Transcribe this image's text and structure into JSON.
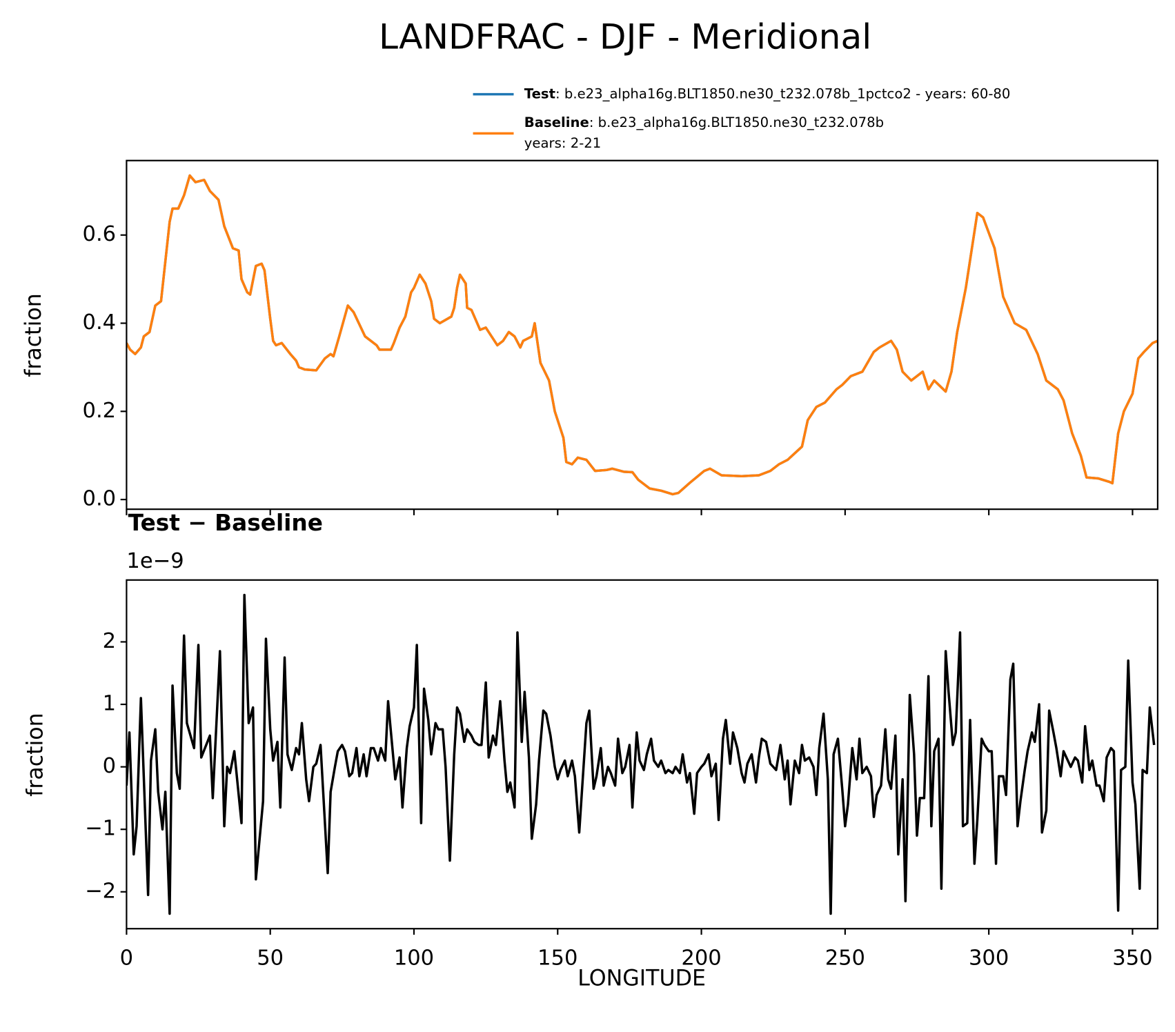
{
  "chart_data": [
    {
      "type": "line",
      "title": "LANDFRAC - DJF - Meridional",
      "ylabel": "fraction",
      "x": [
        0,
        1.25,
        3,
        5,
        6,
        8,
        10,
        12,
        14,
        15,
        16,
        18,
        20,
        22,
        24,
        27,
        29,
        32,
        34,
        37,
        39,
        40,
        42,
        43,
        45,
        47,
        48,
        50,
        51,
        52,
        54,
        57,
        59,
        60,
        62,
        66,
        69,
        71,
        72,
        74,
        77,
        79,
        83,
        87,
        88,
        92,
        93,
        95,
        97,
        99,
        100,
        102,
        104,
        106,
        107,
        109,
        113,
        114,
        115,
        116,
        118,
        118.5,
        120,
        123,
        125,
        127,
        129,
        131,
        133,
        135,
        137,
        138,
        141,
        142,
        144,
        147,
        149,
        152,
        153,
        155,
        157,
        160,
        163,
        167,
        169,
        173,
        176,
        178,
        182,
        186,
        190,
        192,
        196,
        201,
        203,
        207,
        214,
        220,
        224,
        227,
        230,
        235,
        237,
        240,
        243,
        247,
        249,
        252,
        256,
        260,
        262,
        266,
        268,
        270,
        273,
        277,
        279,
        281,
        285,
        287,
        289,
        292,
        296,
        298,
        302,
        305,
        309,
        313,
        317,
        320,
        324,
        326,
        329,
        332,
        334,
        338,
        342,
        343,
        345,
        347,
        350,
        352,
        354,
        357,
        358.75
      ],
      "series": [
        {
          "name": "Test",
          "description": [
            ": b.e23_alpha16g.BLT1850.ne30_t232.078b_1pctco2 - years: 60-80"
          ],
          "color": "#1f77b4",
          "values": [
            0.355,
            0.34,
            0.33,
            0.345,
            0.37,
            0.38,
            0.44,
            0.45,
            0.57,
            0.63,
            0.66,
            0.66,
            0.69,
            0.735,
            0.72,
            0.725,
            0.7,
            0.68,
            0.62,
            0.57,
            0.565,
            0.5,
            0.47,
            0.465,
            0.53,
            0.535,
            0.52,
            0.41,
            0.36,
            0.35,
            0.355,
            0.33,
            0.315,
            0.3,
            0.295,
            0.293,
            0.32,
            0.33,
            0.325,
            0.37,
            0.44,
            0.425,
            0.37,
            0.35,
            0.34,
            0.34,
            0.355,
            0.39,
            0.415,
            0.47,
            0.48,
            0.51,
            0.49,
            0.45,
            0.41,
            0.4,
            0.415,
            0.435,
            0.48,
            0.51,
            0.49,
            0.435,
            0.43,
            0.385,
            0.39,
            0.37,
            0.35,
            0.36,
            0.38,
            0.37,
            0.345,
            0.36,
            0.37,
            0.4,
            0.31,
            0.27,
            0.2,
            0.14,
            0.085,
            0.08,
            0.095,
            0.09,
            0.065,
            0.067,
            0.07,
            0.063,
            0.062,
            0.045,
            0.025,
            0.02,
            0.012,
            0.015,
            0.038,
            0.065,
            0.07,
            0.055,
            0.053,
            0.055,
            0.065,
            0.08,
            0.09,
            0.12,
            0.18,
            0.21,
            0.22,
            0.25,
            0.26,
            0.28,
            0.29,
            0.335,
            0.345,
            0.36,
            0.34,
            0.29,
            0.27,
            0.29,
            0.25,
            0.27,
            0.245,
            0.29,
            0.38,
            0.48,
            0.65,
            0.64,
            0.57,
            0.46,
            0.4,
            0.385,
            0.33,
            0.27,
            0.25,
            0.225,
            0.15,
            0.1,
            0.05,
            0.048,
            0.04,
            0.037,
            0.15,
            0.2,
            0.24,
            0.32,
            0.335,
            0.355,
            0.36
          ]
        },
        {
          "name": "Baseline",
          "description": [
            ": b.e23_alpha16g.BLT1850.ne30_t232.078b",
            "years: 2-21"
          ],
          "color": "#ff7f0e",
          "values": [
            0.355,
            0.34,
            0.33,
            0.345,
            0.37,
            0.38,
            0.44,
            0.45,
            0.57,
            0.63,
            0.66,
            0.66,
            0.69,
            0.735,
            0.72,
            0.725,
            0.7,
            0.68,
            0.62,
            0.57,
            0.565,
            0.5,
            0.47,
            0.465,
            0.53,
            0.535,
            0.52,
            0.41,
            0.36,
            0.35,
            0.355,
            0.33,
            0.315,
            0.3,
            0.295,
            0.293,
            0.32,
            0.33,
            0.325,
            0.37,
            0.44,
            0.425,
            0.37,
            0.35,
            0.34,
            0.34,
            0.355,
            0.39,
            0.415,
            0.47,
            0.48,
            0.51,
            0.49,
            0.45,
            0.41,
            0.4,
            0.415,
            0.435,
            0.48,
            0.51,
            0.49,
            0.435,
            0.43,
            0.385,
            0.39,
            0.37,
            0.35,
            0.36,
            0.38,
            0.37,
            0.345,
            0.36,
            0.37,
            0.4,
            0.31,
            0.27,
            0.2,
            0.14,
            0.085,
            0.08,
            0.095,
            0.09,
            0.065,
            0.067,
            0.07,
            0.063,
            0.062,
            0.045,
            0.025,
            0.02,
            0.012,
            0.015,
            0.038,
            0.065,
            0.07,
            0.055,
            0.053,
            0.055,
            0.065,
            0.08,
            0.09,
            0.12,
            0.18,
            0.21,
            0.22,
            0.25,
            0.26,
            0.28,
            0.29,
            0.335,
            0.345,
            0.36,
            0.34,
            0.29,
            0.27,
            0.29,
            0.25,
            0.27,
            0.245,
            0.29,
            0.38,
            0.48,
            0.65,
            0.64,
            0.57,
            0.46,
            0.4,
            0.385,
            0.33,
            0.27,
            0.25,
            0.225,
            0.15,
            0.1,
            0.05,
            0.048,
            0.04,
            0.037,
            0.15,
            0.2,
            0.24,
            0.32,
            0.335,
            0.355,
            0.36
          ]
        }
      ],
      "xlim": [
        0,
        358.75
      ],
      "xticks": [
        0,
        50,
        100,
        150,
        200,
        250,
        300,
        350
      ],
      "ylim": [
        -0.022,
        0.769
      ],
      "yticks": [
        {
          "value": 0,
          "label": "0.0"
        },
        0.2,
        0.4,
        0.6
      ]
    },
    {
      "type": "line",
      "title": "Test − Baseline",
      "offset_text": "1e−9",
      "xlabel": "LONGITUDE",
      "ylabel": "fraction",
      "color": "#000000",
      "x": [
        0,
        1,
        2.5,
        3.5,
        5,
        7.5,
        8.5,
        10,
        11,
        12.5,
        13.5,
        15,
        16,
        17.5,
        18.5,
        20,
        21,
        23.5,
        25,
        26,
        29,
        30,
        32.5,
        34,
        35,
        36,
        37.5,
        40,
        41,
        42.5,
        44,
        45,
        47.5,
        48.5,
        50,
        51,
        52.5,
        53.5,
        55,
        56,
        57.5,
        59,
        60,
        61,
        62.5,
        63.5,
        65,
        66,
        67.5,
        70,
        71,
        72.5,
        73.5,
        75,
        76,
        77.5,
        78.5,
        80,
        81,
        82.5,
        83.5,
        85,
        86,
        87.5,
        88.5,
        90,
        91,
        92.5,
        93.5,
        95,
        96,
        97.5,
        98.5,
        100,
        101,
        102.5,
        103.5,
        105,
        106,
        107.5,
        108.5,
        110,
        111,
        112.5,
        114,
        115,
        116,
        117.5,
        118.5,
        120,
        121,
        122.5,
        123.5,
        125,
        126,
        127.5,
        128.5,
        130,
        131.5,
        132.5,
        133.5,
        135,
        136,
        137.5,
        138.5,
        140,
        141,
        142.5,
        143.5,
        145,
        146,
        147.5,
        149,
        150,
        151,
        152.5,
        153.5,
        155,
        156,
        157.5,
        158.5,
        160,
        161,
        162.5,
        163.5,
        165,
        166,
        167.5,
        168.5,
        170,
        171,
        172.5,
        173.5,
        175,
        176,
        177.5,
        178.5,
        180,
        181,
        182.5,
        183.5,
        185,
        186,
        187.5,
        188.5,
        190,
        191,
        192.5,
        193.5,
        195,
        196,
        197.5,
        198.5,
        200,
        201,
        202.5,
        203.5,
        205,
        206,
        207.5,
        208.5,
        210,
        211,
        212.5,
        214,
        215,
        216,
        217.5,
        219,
        220,
        221,
        222.5,
        224,
        225,
        226,
        227.5,
        229,
        230,
        231,
        232.5,
        234,
        235,
        236,
        237.5,
        239,
        240,
        241,
        242.5,
        244,
        245,
        246,
        247.5,
        249,
        250,
        251,
        252.5,
        254,
        255,
        256,
        257.5,
        259,
        260,
        261,
        262.5,
        264,
        265,
        266,
        267.5,
        268.5,
        270,
        271,
        272.5,
        274,
        275,
        276,
        277.5,
        279,
        280,
        281,
        282.5,
        283.5,
        285,
        286,
        287.5,
        288.5,
        290,
        291,
        292.5,
        293.5,
        295,
        296,
        297.5,
        298.5,
        300,
        301,
        302.5,
        303.5,
        305,
        306,
        307.5,
        308.5,
        310,
        311,
        312.5,
        313.5,
        315,
        316,
        317.5,
        318.5,
        320,
        321,
        322.5,
        323.5,
        325,
        326,
        327.5,
        328.5,
        330,
        331,
        332.5,
        333.5,
        335,
        336,
        337.5,
        338.5,
        340,
        341,
        342.5,
        343.5,
        345,
        346,
        347.5,
        348.5,
        350,
        351,
        352.5,
        353.5,
        355,
        356,
        357.5
      ],
      "values": [
        -0.3,
        0.55,
        -1.4,
        -0.95,
        1.1,
        -2.05,
        0.1,
        0.6,
        -0.4,
        -1.0,
        -0.4,
        -2.35,
        1.3,
        -0.1,
        -0.35,
        2.1,
        0.7,
        0.3,
        1.95,
        0.15,
        0.5,
        -0.5,
        1.85,
        -0.95,
        0.0,
        -0.1,
        0.25,
        -0.9,
        2.75,
        0.7,
        0.95,
        -1.8,
        -0.55,
        2.05,
        0.6,
        0.1,
        0.4,
        -0.65,
        1.75,
        0.2,
        -0.05,
        0.3,
        0.2,
        0.7,
        -0.2,
        -0.55,
        0.0,
        0.05,
        0.35,
        -1.7,
        -0.4,
        0.0,
        0.25,
        0.35,
        0.25,
        -0.15,
        -0.1,
        0.3,
        -0.15,
        0.2,
        -0.15,
        0.3,
        0.3,
        0.1,
        0.3,
        0.1,
        1.05,
        0.3,
        -0.2,
        0.15,
        -0.65,
        0.3,
        0.65,
        0.95,
        1.95,
        -0.9,
        1.25,
        0.75,
        0.2,
        0.7,
        0.6,
        0.6,
        0.0,
        -1.5,
        0.2,
        0.95,
        0.85,
        0.4,
        0.6,
        0.5,
        0.4,
        0.35,
        0.35,
        1.35,
        0.15,
        0.5,
        0.35,
        1.05,
        0.1,
        -0.4,
        -0.25,
        -0.65,
        2.15,
        0.4,
        1.2,
        0.15,
        -1.15,
        -0.6,
        0.1,
        0.9,
        0.85,
        0.5,
        0.0,
        -0.2,
        -0.05,
        0.1,
        -0.15,
        0.1,
        -0.15,
        -1.05,
        -0.35,
        0.7,
        0.9,
        -0.35,
        -0.15,
        0.3,
        -0.3,
        0.0,
        -0.1,
        -0.3,
        0.45,
        -0.1,
        0.0,
        0.35,
        -0.65,
        0.55,
        0.1,
        -0.05,
        0.2,
        0.45,
        0.1,
        0.0,
        0.1,
        -0.1,
        -0.05,
        -0.1,
        0.0,
        -0.1,
        0.2,
        -0.25,
        -0.1,
        -0.75,
        -0.1,
        0.0,
        0.05,
        0.2,
        -0.15,
        0.05,
        -0.85,
        0.45,
        0.75,
        0.05,
        0.55,
        0.3,
        -0.1,
        -0.25,
        0.05,
        0.2,
        -0.25,
        0.15,
        0.45,
        0.4,
        0.05,
        0.0,
        -0.05,
        0.35,
        -0.2,
        0.1,
        -0.6,
        0.1,
        -0.1,
        0.35,
        0.1,
        0.15,
        0.0,
        -0.45,
        0.3,
        0.85,
        -0.2,
        -2.35,
        0.2,
        0.45,
        -0.35,
        -0.95,
        -0.6,
        0.3,
        -0.2,
        0.45,
        -0.1,
        0.0,
        -0.15,
        -0.8,
        -0.45,
        -0.3,
        0.6,
        -0.2,
        -0.35,
        0.5,
        -1.4,
        -0.2,
        -2.15,
        1.15,
        0.2,
        -1.1,
        -0.5,
        -0.5,
        1.45,
        -0.95,
        0.25,
        0.45,
        -1.95,
        1.85,
        1.2,
        0.35,
        0.55,
        2.15,
        -0.95,
        -0.9,
        0.75,
        -1.55,
        -0.85,
        0.45,
        0.35,
        0.25,
        0.25,
        -1.55,
        -0.15,
        -0.15,
        -0.45,
        1.4,
        1.65,
        -0.95,
        -0.55,
        -0.05,
        0.25,
        0.55,
        0.4,
        1.0,
        -1.05,
        -0.7,
        0.9,
        0.55,
        0.3,
        -0.15,
        0.25,
        0.1,
        0.0,
        0.15,
        0.1,
        -0.25,
        0.65,
        -0.05,
        0.1,
        -0.3,
        -0.3,
        -0.55,
        0.15,
        0.3,
        0.25,
        -2.3,
        -0.05,
        0.0,
        1.7,
        -0.25,
        -0.6,
        -1.95,
        -0.05,
        -0.1,
        0.95,
        0.35
      ],
      "xlim": [
        0,
        358.75
      ],
      "xticks": [
        0,
        50,
        100,
        150,
        200,
        250,
        300,
        350
      ],
      "ylim": [
        -2.59,
        2.99
      ],
      "yticks": [
        {
          "value": -2,
          "label": "−2"
        },
        {
          "value": -1,
          "label": "−1"
        },
        0,
        1,
        2
      ]
    }
  ]
}
